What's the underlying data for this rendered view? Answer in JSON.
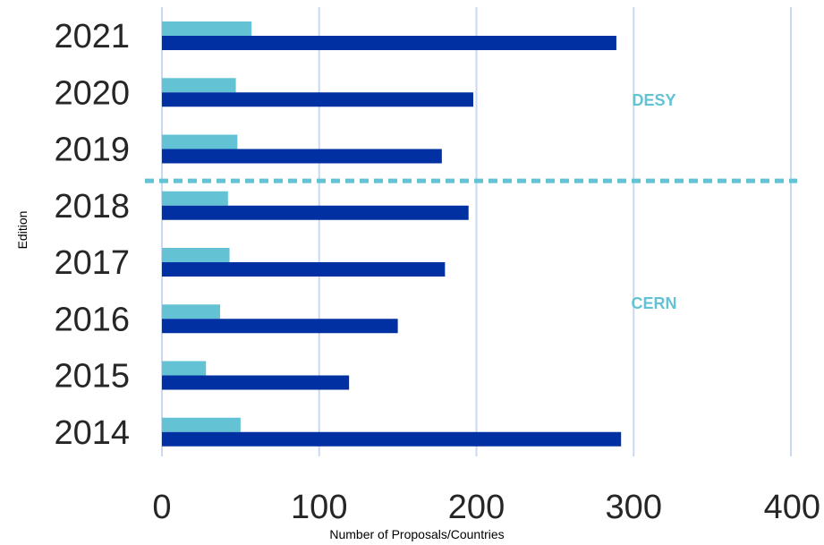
{
  "chart_data": {
    "type": "bar",
    "orientation": "horizontal",
    "categories": [
      "2021",
      "2020",
      "2019",
      "2018",
      "2017",
      "2016",
      "2015",
      "2014"
    ],
    "series": [
      {
        "values": [
          57,
          47,
          48,
          42,
          43,
          37,
          28,
          50
        ],
        "color": "#63c3d4"
      },
      {
        "values": [
          289,
          198,
          178,
          195,
          180,
          150,
          119,
          292
        ],
        "color": "#0030a1"
      }
    ],
    "xlabel": "Number of Proposals/Countries",
    "ylabel": "Edition",
    "xlim": [
      0,
      400
    ],
    "x_ticks": [
      "0",
      "100",
      "200",
      "300",
      "400"
    ],
    "grid": "vertical",
    "annotations": [
      {
        "text": "DESY",
        "color": "#63c3d4"
      },
      {
        "text": "CERN",
        "color": "#63c3d4"
      }
    ],
    "separator": {
      "between": [
        "2019",
        "2018"
      ],
      "style": "dashed",
      "color": "#63c3d4"
    }
  }
}
